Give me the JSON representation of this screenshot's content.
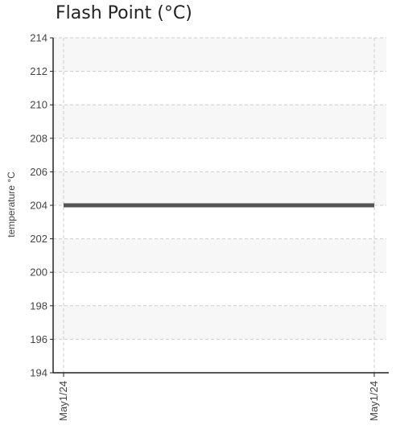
{
  "chart_data": {
    "type": "line",
    "title": "Flash Point (°C)",
    "xlabel": "",
    "ylabel": "temperature °C",
    "x": [
      "May1/24",
      "May1/24"
    ],
    "series": [
      {
        "values": [
          204,
          204
        ]
      }
    ],
    "ylim": [
      194,
      214
    ],
    "yticks": [
      194,
      196,
      198,
      200,
      202,
      204,
      206,
      208,
      210,
      212,
      214
    ],
    "grid": true,
    "legend": "none",
    "colors": {
      "line": "#555555",
      "grid": "#cccccc",
      "band": "#f7f7f7",
      "axis": "#222222"
    }
  }
}
